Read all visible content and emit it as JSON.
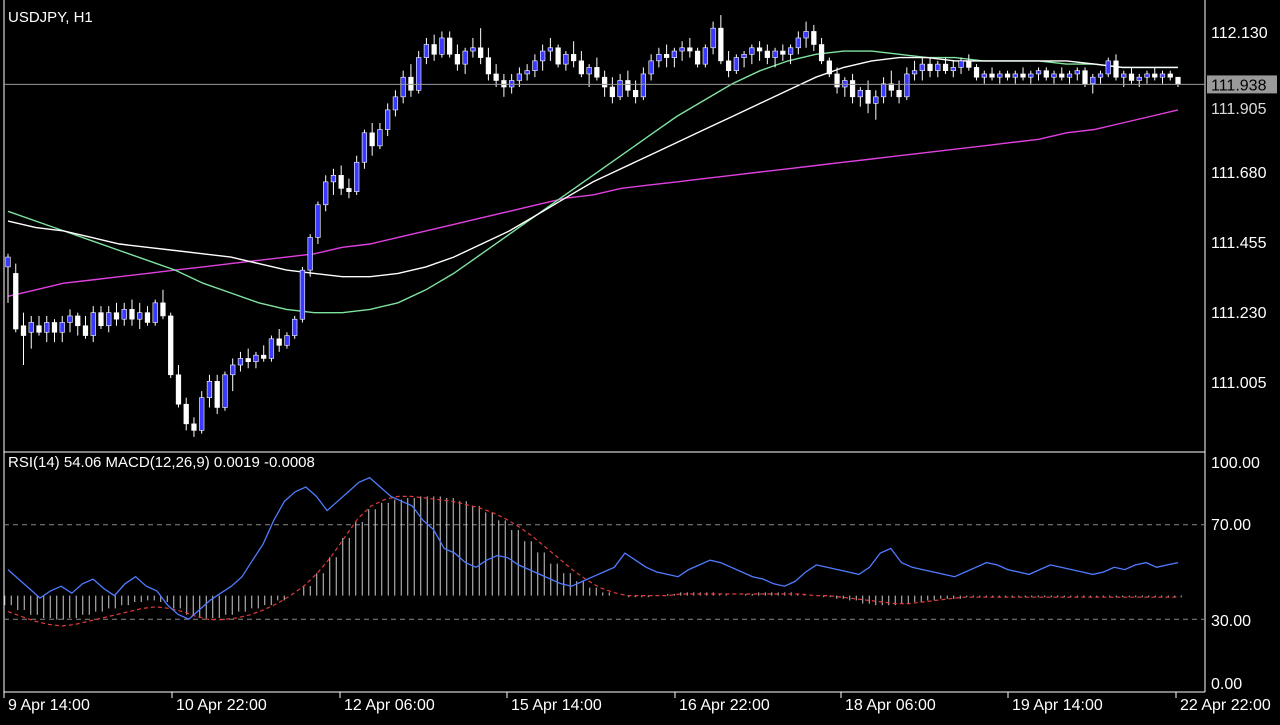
{
  "symbol_label": "USDJPY, H1",
  "indicator_label": "RSI(14) 54.06 MACD(12,26,9) 0.0019 -0.0008",
  "current_price_label": "111.938",
  "partial_price_label": "111.905",
  "colors": {
    "background": "#000000",
    "bull_candle": "#3a3aff",
    "bear_candle": "#ffffff",
    "ma_fast": "#ffffff",
    "ma_mid": "#7fe3a0",
    "ma_slow": "#e040e0",
    "rsi": "#4f7bff",
    "macd_signal": "#e03a3a",
    "macd_hist": "#cccccc",
    "grid": "#888888"
  },
  "price_axis": [
    "112.130",
    "111.680",
    "111.455",
    "111.230",
    "111.005"
  ],
  "indicator_axis": [
    "100.00",
    "70.00",
    "30.00",
    "0.00"
  ],
  "time_axis": [
    "9 Apr 14:00",
    "10 Apr 22:00",
    "12 Apr 06:00",
    "15 Apr 14:00",
    "16 Apr 22:00",
    "18 Apr 06:00",
    "19 Apr 14:00",
    "22 Apr 22:00"
  ],
  "chart_data": {
    "type": "candlestick",
    "symbol": "USDJPY",
    "timeframe": "H1",
    "ylim": [
      110.82,
      112.19
    ],
    "current_price": 111.938,
    "candles": [
      [
        111.38,
        111.42,
        111.27,
        111.41
      ],
      [
        111.36,
        111.39,
        111.18,
        111.19
      ],
      [
        111.2,
        111.24,
        111.08,
        111.17
      ],
      [
        111.18,
        111.23,
        111.13,
        111.21
      ],
      [
        111.2,
        111.23,
        111.17,
        111.18
      ],
      [
        111.18,
        111.23,
        111.15,
        111.21
      ],
      [
        111.21,
        111.22,
        111.15,
        111.18
      ],
      [
        111.18,
        111.23,
        111.15,
        111.21
      ],
      [
        111.21,
        111.25,
        111.18,
        111.23
      ],
      [
        111.23,
        111.24,
        111.17,
        111.2
      ],
      [
        111.2,
        111.23,
        111.16,
        111.17
      ],
      [
        111.17,
        111.26,
        111.15,
        111.24
      ],
      [
        111.24,
        111.26,
        111.19,
        111.2
      ],
      [
        111.2,
        111.26,
        111.18,
        111.24
      ],
      [
        111.24,
        111.27,
        111.2,
        111.22
      ],
      [
        111.22,
        111.27,
        111.2,
        111.25
      ],
      [
        111.25,
        111.28,
        111.2,
        111.22
      ],
      [
        111.22,
        111.27,
        111.19,
        111.24
      ],
      [
        111.24,
        111.26,
        111.2,
        111.21
      ],
      [
        111.21,
        111.28,
        111.2,
        111.27
      ],
      [
        111.27,
        111.31,
        111.22,
        111.23
      ],
      [
        111.23,
        111.24,
        111.04,
        111.05
      ],
      [
        111.05,
        111.08,
        110.95,
        110.96
      ],
      [
        110.96,
        110.98,
        110.88,
        110.9
      ],
      [
        110.9,
        110.92,
        110.86,
        110.88
      ],
      [
        110.88,
        111.0,
        110.87,
        110.98
      ],
      [
        110.98,
        111.05,
        110.95,
        111.03
      ],
      [
        111.03,
        111.05,
        110.93,
        110.95
      ],
      [
        110.95,
        111.06,
        110.94,
        111.05
      ],
      [
        111.05,
        111.1,
        111.0,
        111.08
      ],
      [
        111.08,
        111.12,
        111.06,
        111.1
      ],
      [
        111.1,
        111.13,
        111.07,
        111.09
      ],
      [
        111.09,
        111.12,
        111.07,
        111.11
      ],
      [
        111.11,
        111.14,
        111.09,
        111.1
      ],
      [
        111.1,
        111.17,
        111.09,
        111.16
      ],
      [
        111.16,
        111.19,
        111.12,
        111.14
      ],
      [
        111.14,
        111.18,
        111.13,
        111.17
      ],
      [
        111.17,
        111.23,
        111.16,
        111.22
      ],
      [
        111.22,
        111.38,
        111.21,
        111.37
      ],
      [
        111.37,
        111.48,
        111.35,
        111.47
      ],
      [
        111.47,
        111.58,
        111.45,
        111.57
      ],
      [
        111.57,
        111.66,
        111.55,
        111.64
      ],
      [
        111.64,
        111.68,
        111.6,
        111.66
      ],
      [
        111.66,
        111.69,
        111.6,
        111.62
      ],
      [
        111.62,
        111.65,
        111.59,
        111.61
      ],
      [
        111.61,
        111.72,
        111.6,
        111.7
      ],
      [
        111.7,
        111.8,
        111.68,
        111.79
      ],
      [
        111.79,
        111.82,
        111.72,
        111.75
      ],
      [
        111.75,
        111.82,
        111.74,
        111.8
      ],
      [
        111.8,
        111.88,
        111.78,
        111.86
      ],
      [
        111.86,
        111.92,
        111.84,
        111.9
      ],
      [
        111.9,
        111.98,
        111.88,
        111.96
      ],
      [
        111.96,
        112.0,
        111.9,
        111.92
      ],
      [
        111.92,
        112.04,
        111.91,
        112.02
      ],
      [
        112.02,
        112.08,
        112.0,
        112.06
      ],
      [
        112.06,
        112.09,
        112.01,
        112.03
      ],
      [
        112.03,
        112.1,
        112.02,
        112.08
      ],
      [
        112.08,
        112.1,
        112.02,
        112.03
      ],
      [
        112.03,
        112.06,
        111.98,
        112.0
      ],
      [
        112.0,
        112.05,
        111.97,
        112.04
      ],
      [
        112.04,
        112.08,
        112.02,
        112.05
      ],
      [
        112.05,
        112.11,
        112.0,
        112.02
      ],
      [
        112.02,
        112.05,
        111.95,
        111.97
      ],
      [
        111.97,
        112.0,
        111.93,
        111.95
      ],
      [
        111.95,
        111.97,
        111.9,
        111.93
      ],
      [
        111.93,
        111.97,
        111.91,
        111.95
      ],
      [
        111.95,
        111.99,
        111.93,
        111.97
      ],
      [
        111.97,
        112.0,
        111.95,
        111.98
      ],
      [
        111.98,
        112.03,
        111.96,
        112.01
      ],
      [
        112.01,
        112.06,
        111.98,
        112.04
      ],
      [
        112.04,
        112.08,
        112.01,
        112.05
      ],
      [
        112.05,
        112.06,
        111.99,
        112.0
      ],
      [
        112.0,
        112.04,
        111.98,
        112.03
      ],
      [
        112.03,
        112.07,
        111.99,
        112.01
      ],
      [
        112.01,
        112.04,
        111.96,
        111.97
      ],
      [
        111.97,
        112.0,
        111.93,
        111.99
      ],
      [
        111.99,
        112.02,
        111.95,
        111.96
      ],
      [
        111.96,
        111.98,
        111.9,
        111.93
      ],
      [
        111.93,
        111.96,
        111.88,
        111.9
      ],
      [
        111.9,
        111.97,
        111.89,
        111.95
      ],
      [
        111.95,
        111.98,
        111.9,
        111.92
      ],
      [
        111.92,
        111.95,
        111.88,
        111.9
      ],
      [
        111.9,
        111.99,
        111.89,
        111.97
      ],
      [
        111.97,
        112.03,
        111.95,
        112.01
      ],
      [
        112.01,
        112.05,
        111.99,
        112.03
      ],
      [
        112.03,
        112.06,
        111.99,
        112.02
      ],
      [
        112.02,
        112.05,
        111.99,
        112.04
      ],
      [
        112.04,
        112.07,
        112.01,
        112.05
      ],
      [
        112.05,
        112.08,
        112.02,
        112.04
      ],
      [
        112.04,
        112.05,
        111.99,
        112.0
      ],
      [
        112.0,
        112.06,
        111.99,
        112.05
      ],
      [
        112.05,
        112.13,
        112.03,
        112.11
      ],
      [
        112.11,
        112.15,
        112.0,
        112.01
      ],
      [
        112.01,
        112.04,
        111.96,
        111.98
      ],
      [
        111.98,
        112.03,
        111.97,
        112.02
      ],
      [
        112.02,
        112.04,
        111.99,
        112.03
      ],
      [
        112.03,
        112.06,
        112.0,
        112.05
      ],
      [
        112.05,
        112.07,
        112.01,
        112.04
      ],
      [
        112.04,
        112.06,
        112.0,
        112.02
      ],
      [
        112.02,
        112.05,
        111.99,
        112.04
      ],
      [
        112.04,
        112.06,
        112.01,
        112.03
      ],
      [
        112.03,
        112.06,
        112.0,
        112.05
      ],
      [
        112.05,
        112.1,
        112.03,
        112.08
      ],
      [
        112.08,
        112.13,
        112.05,
        112.1
      ],
      [
        112.1,
        112.12,
        112.04,
        112.06
      ],
      [
        112.06,
        112.08,
        112.0,
        112.01
      ],
      [
        112.01,
        112.02,
        111.96,
        111.97
      ],
      [
        111.97,
        111.99,
        111.91,
        111.93
      ],
      [
        111.93,
        111.96,
        111.9,
        111.95
      ],
      [
        111.95,
        111.97,
        111.88,
        111.9
      ],
      [
        111.9,
        111.93,
        111.87,
        111.92
      ],
      [
        111.92,
        111.95,
        111.85,
        111.88
      ],
      [
        111.88,
        111.92,
        111.83,
        111.9
      ],
      [
        111.9,
        111.96,
        111.88,
        111.94
      ],
      [
        111.94,
        111.98,
        111.9,
        111.92
      ],
      [
        111.92,
        111.95,
        111.88,
        111.9
      ],
      [
        111.9,
        111.99,
        111.89,
        111.97
      ],
      [
        111.97,
        112.01,
        111.95,
        111.98
      ],
      [
        111.98,
        112.02,
        111.95,
        112.0
      ],
      [
        112.0,
        112.02,
        111.96,
        111.98
      ],
      [
        111.98,
        112.01,
        111.96,
        112.0
      ],
      [
        112.0,
        112.02,
        111.97,
        111.98
      ],
      [
        111.98,
        112.01,
        111.96,
        111.99
      ],
      [
        111.99,
        112.02,
        111.97,
        112.01
      ],
      [
        112.01,
        112.03,
        111.98,
        111.99
      ],
      [
        111.99,
        112.0,
        111.95,
        111.96
      ],
      [
        111.96,
        111.98,
        111.94,
        111.97
      ],
      [
        111.97,
        111.99,
        111.95,
        111.96
      ],
      [
        111.96,
        111.98,
        111.94,
        111.97
      ],
      [
        111.97,
        111.98,
        111.95,
        111.96
      ],
      [
        111.96,
        111.98,
        111.94,
        111.97
      ],
      [
        111.97,
        111.99,
        111.95,
        111.96
      ],
      [
        111.96,
        111.98,
        111.94,
        111.97
      ],
      [
        111.97,
        111.99,
        111.95,
        111.98
      ],
      [
        111.98,
        111.99,
        111.95,
        111.96
      ],
      [
        111.96,
        111.98,
        111.94,
        111.97
      ],
      [
        111.97,
        111.99,
        111.95,
        111.96
      ],
      [
        111.96,
        111.98,
        111.94,
        111.97
      ],
      [
        111.97,
        111.99,
        111.95,
        111.98
      ],
      [
        111.98,
        111.99,
        111.93,
        111.94
      ],
      [
        111.94,
        111.97,
        111.91,
        111.96
      ],
      [
        111.96,
        111.98,
        111.94,
        111.97
      ],
      [
        111.97,
        112.02,
        111.96,
        112.01
      ],
      [
        112.01,
        112.03,
        111.95,
        111.96
      ],
      [
        111.96,
        111.98,
        111.93,
        111.97
      ],
      [
        111.97,
        111.99,
        111.94,
        111.95
      ],
      [
        111.95,
        111.97,
        111.93,
        111.96
      ],
      [
        111.96,
        111.98,
        111.94,
        111.97
      ],
      [
        111.97,
        111.99,
        111.95,
        111.96
      ],
      [
        111.96,
        111.98,
        111.94,
        111.97
      ],
      [
        111.97,
        111.98,
        111.95,
        111.96
      ],
      [
        111.96,
        111.96,
        111.93,
        111.94
      ]
    ],
    "ma_fast": [
      111.52,
      111.5,
      111.49,
      111.47,
      111.45,
      111.44,
      111.43,
      111.42,
      111.41,
      111.39,
      111.37,
      111.36,
      111.35,
      111.35,
      111.36,
      111.38,
      111.41,
      111.45,
      111.49,
      111.54,
      111.59,
      111.64,
      111.68,
      111.72,
      111.76,
      111.8,
      111.84,
      111.88,
      111.92,
      111.96,
      111.99,
      112.01,
      112.02,
      112.02,
      112.01,
      112.01,
      112.01,
      112.01,
      112.01,
      112.0,
      111.99,
      111.99,
      111.99
    ],
    "ma_mid": [
      111.55,
      111.52,
      111.49,
      111.46,
      111.43,
      111.4,
      111.37,
      111.33,
      111.3,
      111.27,
      111.25,
      111.24,
      111.24,
      111.25,
      111.27,
      111.31,
      111.36,
      111.42,
      111.48,
      111.54,
      111.6,
      111.66,
      111.72,
      111.78,
      111.84,
      111.89,
      111.94,
      111.98,
      112.01,
      112.03,
      112.04,
      112.04,
      112.03,
      112.02,
      112.02,
      112.01,
      112.01,
      112.01,
      112.0,
      112.0,
      111.99,
      111.99,
      111.99
    ],
    "ma_slow": [
      111.29,
      111.31,
      111.33,
      111.34,
      111.35,
      111.36,
      111.37,
      111.38,
      111.39,
      111.4,
      111.41,
      111.42,
      111.44,
      111.45,
      111.47,
      111.49,
      111.51,
      111.53,
      111.55,
      111.57,
      111.59,
      111.6,
      111.62,
      111.63,
      111.64,
      111.65,
      111.66,
      111.67,
      111.68,
      111.69,
      111.7,
      111.71,
      111.72,
      111.73,
      111.74,
      111.75,
      111.76,
      111.77,
      111.79,
      111.8,
      111.82,
      111.84,
      111.86
    ],
    "rsi": [
      51,
      47,
      43,
      39,
      42,
      44,
      41,
      45,
      47,
      43,
      40,
      45,
      48,
      44,
      42,
      36,
      32,
      30,
      34,
      38,
      41,
      44,
      48,
      55,
      62,
      72,
      80,
      84,
      86,
      82,
      76,
      80,
      84,
      88,
      90,
      86,
      82,
      80,
      78,
      72,
      68,
      60,
      58,
      54,
      52,
      55,
      57,
      56,
      53,
      51,
      49,
      47,
      45,
      44,
      46,
      48,
      50,
      52,
      58,
      55,
      52,
      50,
      49,
      48,
      51,
      53,
      55,
      54,
      52,
      50,
      48,
      47,
      45,
      44,
      46,
      50,
      53,
      52,
      51,
      50,
      49,
      52,
      58,
      60,
      54,
      52,
      51,
      50,
      49,
      48,
      50,
      52,
      54,
      53,
      51,
      50,
      49,
      51,
      53,
      52,
      51,
      50,
      49,
      50,
      52,
      51,
      53,
      54,
      52,
      53,
      54
    ],
    "rsi_levels": [
      70,
      30
    ],
    "macd_hist": [
      -6,
      -9,
      -12,
      -14,
      -15,
      -14,
      -12,
      -10,
      -8,
      -6,
      -4,
      -3,
      -4,
      -8,
      -12,
      -14,
      -14,
      -12,
      -10,
      -8,
      -6,
      -3,
      0,
      6,
      14,
      24,
      36,
      46,
      54,
      58,
      60,
      61,
      62,
      62,
      61,
      59,
      56,
      52,
      47,
      41,
      34,
      27,
      20,
      14,
      9,
      5,
      2,
      0,
      -1,
      -1,
      0,
      1,
      2,
      2,
      2,
      1,
      0,
      1,
      2,
      2,
      2,
      1,
      0,
      -1,
      -2,
      -3,
      -5,
      -6,
      -6,
      -5,
      -4,
      -3,
      -2,
      -2,
      -1,
      -1,
      -1,
      -1,
      -1,
      -1,
      -1,
      -1,
      -1,
      -1,
      -1,
      -1,
      -1,
      -1,
      -1,
      -1,
      -1
    ],
    "macd_signal": [
      -10,
      -13,
      -16,
      -18,
      -19,
      -18,
      -16,
      -14,
      -12,
      -10,
      -8,
      -7,
      -8,
      -10,
      -13,
      -15,
      -15,
      -14,
      -12,
      -9,
      -5,
      0,
      6,
      14,
      24,
      36,
      48,
      56,
      60,
      62,
      62,
      61,
      60,
      59,
      57,
      55,
      52,
      48,
      43,
      37,
      30,
      23,
      16,
      10,
      5,
      2,
      0,
      0,
      0,
      0,
      1,
      1,
      1,
      1,
      1,
      1,
      1,
      1,
      1,
      1,
      0,
      0,
      -1,
      -2,
      -3,
      -4,
      -5,
      -5,
      -4,
      -3,
      -2,
      -1,
      -1,
      -1,
      -1,
      -1,
      -1,
      -1,
      -1,
      -1,
      -1,
      -1,
      -1,
      -1,
      -1,
      -1,
      -1,
      -1
    ]
  }
}
